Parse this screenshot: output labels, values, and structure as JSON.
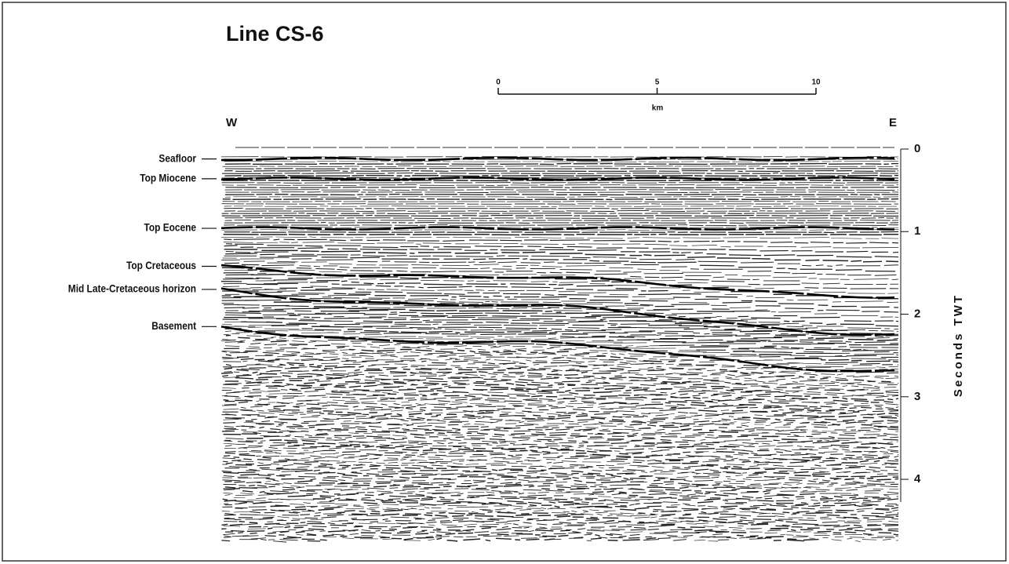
{
  "title": "Line CS-6",
  "scale_bar": {
    "ticks": [
      0,
      5,
      10
    ],
    "unit": "km"
  },
  "directions": {
    "west": "W",
    "east": "E"
  },
  "axis": {
    "label": "Seconds TWT",
    "ylim": [
      0,
      4.75
    ],
    "yticks": [
      0,
      1,
      2,
      3,
      4
    ]
  },
  "horizons": [
    {
      "label": "Seafloor",
      "twt": 0.12
    },
    {
      "label": "Top Miocene",
      "twt": 0.36
    },
    {
      "label": "Top Eocene",
      "twt": 0.96
    },
    {
      "label": "Top Cretaceous",
      "twt": 1.42
    },
    {
      "label": "Mid Late-Cretaceous horizon",
      "twt": 1.7
    },
    {
      "label": "Basement",
      "twt": 2.15
    }
  ]
}
